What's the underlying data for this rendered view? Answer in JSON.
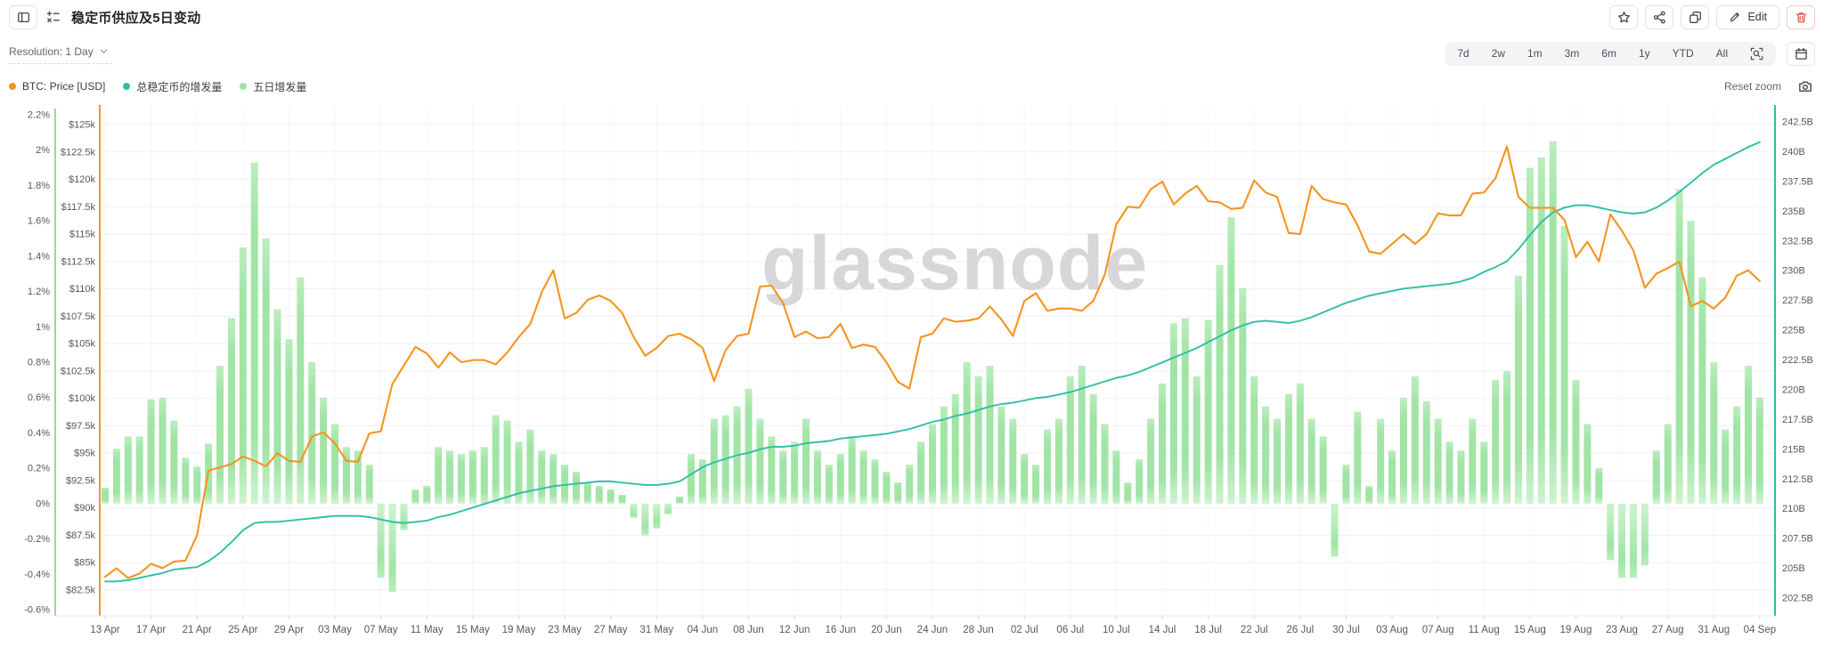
{
  "header": {
    "title": "稳定币供应及5日变动",
    "edit_label": "Edit"
  },
  "toolbar": {
    "resolution_label": "Resolution: 1 Day",
    "ranges": [
      "7d",
      "2w",
      "1m",
      "3m",
      "6m",
      "1y",
      "YTD",
      "All"
    ],
    "reset_zoom_label": "Reset zoom"
  },
  "legend": [
    {
      "label": "BTC: Price [USD]",
      "color": "#F5941F"
    },
    {
      "label": "总稳定币的增发量",
      "color": "#2EBFA5"
    },
    {
      "label": "五日增发量",
      "color": "#9CE3A1"
    }
  ],
  "chart_data": {
    "type": "mixed",
    "title": "稳定币供应及5日变动",
    "watermark": "glassnode",
    "grid": "horizontal-light",
    "x": {
      "num_points": 145,
      "start_label": "13 Apr",
      "end_label": "04 Sep",
      "tick_every_days": 4,
      "tick_labels": [
        "13 Apr",
        "17 Apr",
        "21 Apr",
        "25 Apr",
        "29 Apr",
        "03 May",
        "07 May",
        "11 May",
        "15 May",
        "19 May",
        "23 May",
        "27 May",
        "31 May",
        "04 Jun",
        "08 Jun",
        "12 Jun",
        "16 Jun",
        "20 Jun",
        "24 Jun",
        "28 Jun",
        "02 Jul",
        "06 Jul",
        "10 Jul",
        "14 Jul",
        "18 Jul",
        "22 Jul",
        "26 Jul",
        "30 Jul",
        "03 Aug",
        "07 Aug",
        "11 Aug",
        "15 Aug",
        "19 Aug",
        "23 Aug",
        "27 Aug",
        "31 Aug",
        "04 Sep"
      ]
    },
    "axes": {
      "percent": {
        "side": "far-left",
        "color": "#8FE095",
        "min": -0.6,
        "max": 2.2,
        "tick_labels": [
          "2.2%",
          "2%",
          "1.8%",
          "1.6%",
          "1.4%",
          "1.2%",
          "1%",
          "0.8%",
          "0.6%",
          "0.4%",
          "0.2%",
          "0%",
          "-0.2%",
          "-0.4%",
          "-0.6%"
        ]
      },
      "price": {
        "side": "left",
        "color": "#F5941F",
        "min": 82500,
        "max": 125000,
        "tick_labels": [
          "$125k",
          "$122.5k",
          "$120k",
          "$117.5k",
          "$115k",
          "$112.5k",
          "$110k",
          "$107.5k",
          "$105k",
          "$102.5k",
          "$100k",
          "$97.5k",
          "$95k",
          "$92.5k",
          "$90k",
          "$87.5k",
          "$85k",
          "$82.5k"
        ]
      },
      "supply": {
        "side": "right",
        "color": "#2EBFA5",
        "min": 202.5,
        "max": 242.5,
        "tick_labels": [
          "242.5B",
          "240B",
          "237.5B",
          "235B",
          "232.5B",
          "230B",
          "227.5B",
          "225B",
          "222.5B",
          "220B",
          "217.5B",
          "215B",
          "212.5B",
          "210B",
          "207.5B",
          "205B",
          "202.5B"
        ]
      }
    },
    "series": [
      {
        "name": "BTC: Price [USD]",
        "type": "line",
        "axis": "price",
        "color": "#F5941F",
        "unit": "thousand USD",
        "values": [
          83.7,
          84.5,
          83.6,
          84.0,
          84.9,
          84.5,
          85.1,
          85.2,
          87.5,
          93.4,
          93.7,
          94.0,
          94.7,
          94.3,
          93.8,
          95.0,
          94.3,
          94.2,
          96.5,
          96.9,
          95.9,
          94.3,
          94.2,
          96.8,
          97.0,
          101.3,
          103.0,
          104.7,
          104.1,
          102.8,
          104.2,
          103.3,
          103.5,
          103.5,
          103.1,
          104.2,
          105.6,
          106.8,
          109.7,
          111.7,
          107.3,
          107.8,
          109.0,
          109.4,
          108.9,
          107.8,
          105.6,
          103.9,
          104.6,
          105.7,
          105.9,
          105.4,
          104.6,
          101.6,
          104.4,
          105.7,
          105.9,
          110.2,
          110.3,
          108.7,
          105.6,
          106.1,
          105.5,
          105.6,
          106.8,
          104.6,
          104.9,
          104.7,
          103.3,
          101.5,
          100.9,
          105.6,
          105.9,
          107.3,
          107.0,
          107.1,
          107.3,
          108.4,
          107.2,
          105.7,
          108.9,
          109.6,
          108.0,
          108.2,
          108.2,
          108.0,
          108.9,
          111.3,
          115.9,
          117.5,
          117.4,
          119.1,
          119.8,
          117.7,
          118.7,
          119.4,
          118.0,
          117.9,
          117.3,
          117.4,
          119.9,
          118.8,
          118.4,
          115.1,
          115.0,
          119.4,
          118.2,
          117.9,
          117.7,
          115.8,
          113.4,
          113.2,
          114.1,
          115.0,
          114.1,
          115.0,
          116.9,
          116.7,
          116.7,
          118.7,
          118.8,
          120.1,
          123.0,
          118.4,
          117.4,
          117.4,
          117.4,
          116.3,
          112.9,
          114.3,
          112.5,
          116.8,
          115.3,
          113.5,
          110.1,
          111.4,
          111.9,
          112.5,
          108.4,
          108.9,
          108.2,
          109.2,
          111.2,
          111.7,
          110.7
        ]
      },
      {
        "name": "总稳定币的增发量",
        "type": "line",
        "axis": "supply",
        "color": "#2EBFA5",
        "unit": "billion USD",
        "values": [
          203.9,
          203.9,
          204.0,
          204.2,
          204.4,
          204.6,
          204.9,
          205.0,
          205.1,
          205.6,
          206.3,
          207.2,
          208.2,
          208.8,
          208.9,
          208.9,
          209.0,
          209.1,
          209.2,
          209.3,
          209.4,
          209.4,
          209.4,
          209.3,
          209.1,
          208.9,
          208.8,
          208.9,
          209.0,
          209.3,
          209.5,
          209.8,
          210.1,
          210.4,
          210.7,
          211.0,
          211.3,
          211.5,
          211.7,
          211.9,
          212.0,
          212.1,
          212.2,
          212.3,
          212.3,
          212.2,
          212.1,
          212.0,
          212.0,
          212.1,
          212.3,
          212.9,
          213.5,
          213.9,
          214.2,
          214.5,
          214.7,
          215.0,
          215.2,
          215.2,
          215.3,
          215.5,
          215.6,
          215.7,
          215.9,
          216.0,
          216.1,
          216.2,
          216.3,
          216.5,
          216.7,
          217.0,
          217.3,
          217.5,
          217.8,
          218.0,
          218.3,
          218.6,
          218.8,
          218.9,
          219.1,
          219.3,
          219.4,
          219.6,
          219.8,
          220.1,
          220.4,
          220.7,
          221.0,
          221.2,
          221.5,
          221.9,
          222.3,
          222.7,
          223.1,
          223.5,
          224.0,
          224.5,
          225.0,
          225.4,
          225.7,
          225.8,
          225.7,
          225.6,
          225.8,
          226.1,
          226.5,
          226.9,
          227.3,
          227.6,
          227.9,
          228.1,
          228.3,
          228.5,
          228.6,
          228.7,
          228.8,
          228.9,
          229.1,
          229.4,
          229.9,
          230.3,
          230.8,
          231.8,
          233.0,
          234.1,
          234.9,
          235.3,
          235.5,
          235.5,
          235.3,
          235.1,
          234.9,
          234.8,
          234.9,
          235.3,
          235.9,
          236.6,
          237.4,
          238.2,
          238.9,
          239.4,
          239.9,
          240.4,
          240.8
        ]
      },
      {
        "name": "五日增发量",
        "type": "bar",
        "axis": "percent",
        "color": "#9CE3A1",
        "unit": "%",
        "values": [
          0.09,
          0.31,
          0.38,
          0.38,
          0.59,
          0.6,
          0.47,
          0.26,
          0.21,
          0.34,
          0.78,
          1.05,
          1.45,
          1.93,
          1.5,
          1.1,
          0.93,
          1.28,
          0.8,
          0.6,
          0.45,
          0.32,
          0.3,
          0.22,
          -0.42,
          -0.5,
          -0.15,
          0.08,
          0.1,
          0.32,
          0.3,
          0.28,
          0.3,
          0.32,
          0.5,
          0.47,
          0.35,
          0.42,
          0.3,
          0.28,
          0.22,
          0.18,
          0.12,
          0.1,
          0.08,
          0.05,
          -0.08,
          -0.18,
          -0.14,
          -0.06,
          0.04,
          0.28,
          0.25,
          0.48,
          0.5,
          0.55,
          0.65,
          0.48,
          0.38,
          0.3,
          0.35,
          0.48,
          0.3,
          0.22,
          0.28,
          0.38,
          0.3,
          0.25,
          0.18,
          0.12,
          0.22,
          0.35,
          0.45,
          0.55,
          0.62,
          0.8,
          0.72,
          0.78,
          0.55,
          0.48,
          0.28,
          0.22,
          0.42,
          0.48,
          0.72,
          0.78,
          0.62,
          0.45,
          0.3,
          0.12,
          0.25,
          0.48,
          0.68,
          1.02,
          1.05,
          0.72,
          1.04,
          1.35,
          1.62,
          1.22,
          0.72,
          0.55,
          0.48,
          0.62,
          0.68,
          0.48,
          0.38,
          -0.3,
          0.22,
          0.52,
          0.1,
          0.48,
          0.3,
          0.6,
          0.72,
          0.58,
          0.48,
          0.35,
          0.3,
          0.48,
          0.35,
          0.7,
          0.75,
          1.29,
          1.9,
          1.96,
          2.05,
          1.57,
          0.7,
          0.45,
          0.2,
          -0.32,
          -0.42,
          -0.42,
          -0.35,
          0.3,
          0.45,
          1.78,
          1.6,
          1.28,
          0.8,
          0.42,
          0.55,
          0.78,
          0.6
        ]
      }
    ]
  }
}
